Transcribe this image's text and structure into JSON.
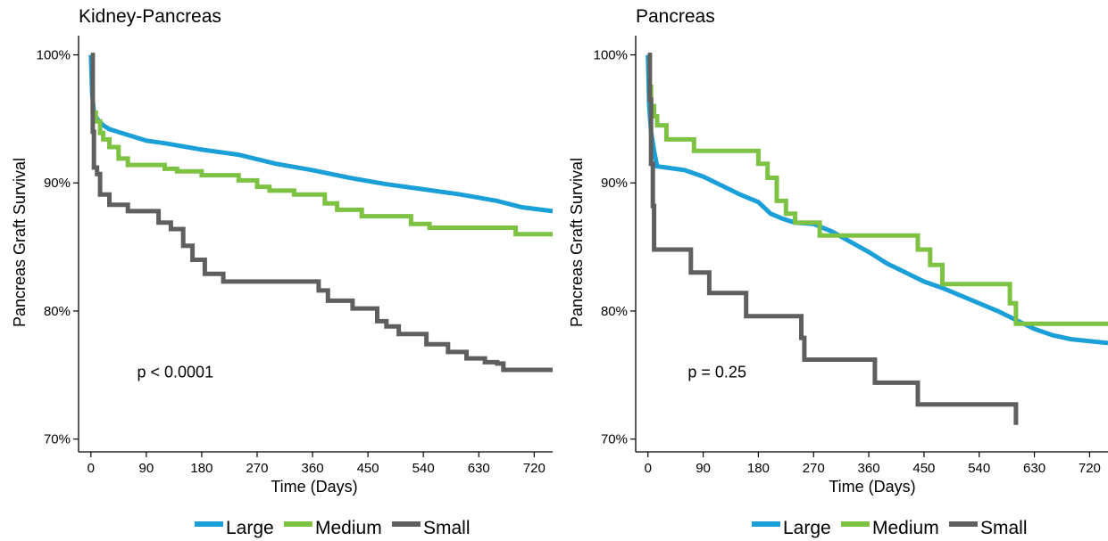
{
  "colors": {
    "large": "#1a9fd8",
    "medium": "#7dc243",
    "small": "#5f5f5f",
    "axis": "#000000"
  },
  "chart_data": [
    {
      "type": "line",
      "title": "Kidney-Pancreas",
      "xlabel": "Time (Days)",
      "ylabel": "Pancreas Graft Survival",
      "xlim": [
        -20,
        750
      ],
      "ylim": [
        69,
        101.5
      ],
      "xticks": [
        0,
        90,
        180,
        270,
        360,
        450,
        540,
        630,
        720
      ],
      "xtick_labels": [
        "0",
        "90",
        "180",
        "270",
        "360",
        "450",
        "540",
        "630",
        "720"
      ],
      "yticks": [
        70,
        80,
        90,
        100
      ],
      "ytick_labels": [
        "70%",
        "80%",
        "90%",
        "100%"
      ],
      "annotation": "p < 0.0001",
      "annotation_pos": [
        75,
        74.8
      ],
      "legend": [
        "Large",
        "Medium",
        "Small"
      ],
      "legend_position": "bottom",
      "series": [
        {
          "name": "Large",
          "color": "#1a9fd8",
          "step": false,
          "x": [
            0,
            2,
            5,
            10,
            20,
            30,
            50,
            90,
            120,
            180,
            240,
            300,
            360,
            420,
            480,
            540,
            600,
            660,
            700,
            750
          ],
          "y": [
            100,
            97,
            95.5,
            95,
            94.5,
            94.2,
            93.9,
            93.3,
            93.1,
            92.6,
            92.2,
            91.5,
            91,
            90.4,
            89.9,
            89.5,
            89.1,
            88.6,
            88.1,
            87.8
          ]
        },
        {
          "name": "Medium",
          "color": "#7dc243",
          "step": true,
          "x": [
            0,
            3,
            8,
            15,
            20,
            30,
            45,
            60,
            120,
            140,
            180,
            240,
            270,
            290,
            330,
            380,
            400,
            440,
            520,
            550,
            580,
            690,
            750
          ],
          "y": [
            97.5,
            95.5,
            94.8,
            93.9,
            93.4,
            92.8,
            91.9,
            91.4,
            91.1,
            90.9,
            90.6,
            90.2,
            89.7,
            89.4,
            89.1,
            88.4,
            87.9,
            87.4,
            86.8,
            86.5,
            86.5,
            86,
            86
          ]
        },
        {
          "name": "Small",
          "color": "#5f5f5f",
          "step": true,
          "x": [
            0,
            3,
            5,
            10,
            15,
            30,
            60,
            110,
            130,
            150,
            165,
            185,
            215,
            230,
            370,
            385,
            410,
            420,
            425,
            465,
            480,
            485,
            500,
            545,
            580,
            610,
            640,
            660,
            670,
            750
          ],
          "y": [
            100,
            94,
            91.2,
            90.7,
            89.1,
            88.3,
            87.8,
            86.9,
            86.4,
            85.1,
            84,
            82.9,
            82.3,
            82.3,
            81.6,
            80.8,
            80.8,
            80.8,
            80.2,
            79.2,
            78.8,
            78.8,
            78.2,
            77.4,
            76.8,
            76.3,
            76,
            75.9,
            75.4,
            75.4
          ]
        }
      ]
    },
    {
      "type": "line",
      "title": "Pancreas",
      "xlabel": "Time (Days)",
      "ylabel": "Pancreas Graft Survival",
      "xlim": [
        -20,
        750
      ],
      "ylim": [
        69,
        101.5
      ],
      "xticks": [
        0,
        90,
        180,
        270,
        360,
        450,
        540,
        630,
        720
      ],
      "xtick_labels": [
        "0",
        "90",
        "180",
        "270",
        "360",
        "450",
        "540",
        "630",
        "720"
      ],
      "yticks": [
        70,
        80,
        90,
        100
      ],
      "ytick_labels": [
        "70%",
        "80%",
        "90%",
        "100%"
      ],
      "annotation": "p = 0.25",
      "annotation_pos": [
        65,
        74.8
      ],
      "legend": [
        "Large",
        "Medium",
        "Small"
      ],
      "legend_position": "bottom",
      "series": [
        {
          "name": "Large",
          "color": "#1a9fd8",
          "step": false,
          "x": [
            0,
            2,
            5,
            10,
            15,
            30,
            60,
            90,
            120,
            150,
            180,
            200,
            220,
            240,
            270,
            300,
            330,
            360,
            390,
            420,
            450,
            480,
            510,
            540,
            570,
            600,
            630,
            660,
            690,
            750
          ],
          "y": [
            100,
            96,
            94,
            92.5,
            91.3,
            91.2,
            91,
            90.5,
            89.8,
            89.1,
            88.5,
            87.6,
            87.2,
            86.9,
            86.8,
            86.2,
            85.4,
            84.6,
            83.7,
            83,
            82.3,
            81.8,
            81.2,
            80.6,
            80,
            79.3,
            78.6,
            78.1,
            77.8,
            77.5
          ]
        },
        {
          "name": "Medium",
          "color": "#7dc243",
          "step": true,
          "x": [
            0,
            3,
            5,
            10,
            15,
            30,
            75,
            180,
            195,
            210,
            225,
            240,
            255,
            280,
            350,
            420,
            440,
            460,
            480,
            580,
            590,
            600,
            750
          ],
          "y": [
            100,
            97.5,
            96,
            95.2,
            94.5,
            93.4,
            92.5,
            91.5,
            90.4,
            88.6,
            87.6,
            86.9,
            86.9,
            85.9,
            85.9,
            85.9,
            84.8,
            83.6,
            82.1,
            82.1,
            80.6,
            79,
            79
          ]
        },
        {
          "name": "Small",
          "color": "#5f5f5f",
          "step": true,
          "x": [
            0,
            3,
            5,
            8,
            10,
            70,
            100,
            160,
            250,
            255,
            370,
            440,
            500,
            600
          ],
          "y": [
            100,
            96.5,
            91.5,
            88.2,
            84.8,
            83,
            81.4,
            79.6,
            77.9,
            76.2,
            74.4,
            72.7,
            72.7,
            71.1
          ]
        }
      ]
    }
  ]
}
